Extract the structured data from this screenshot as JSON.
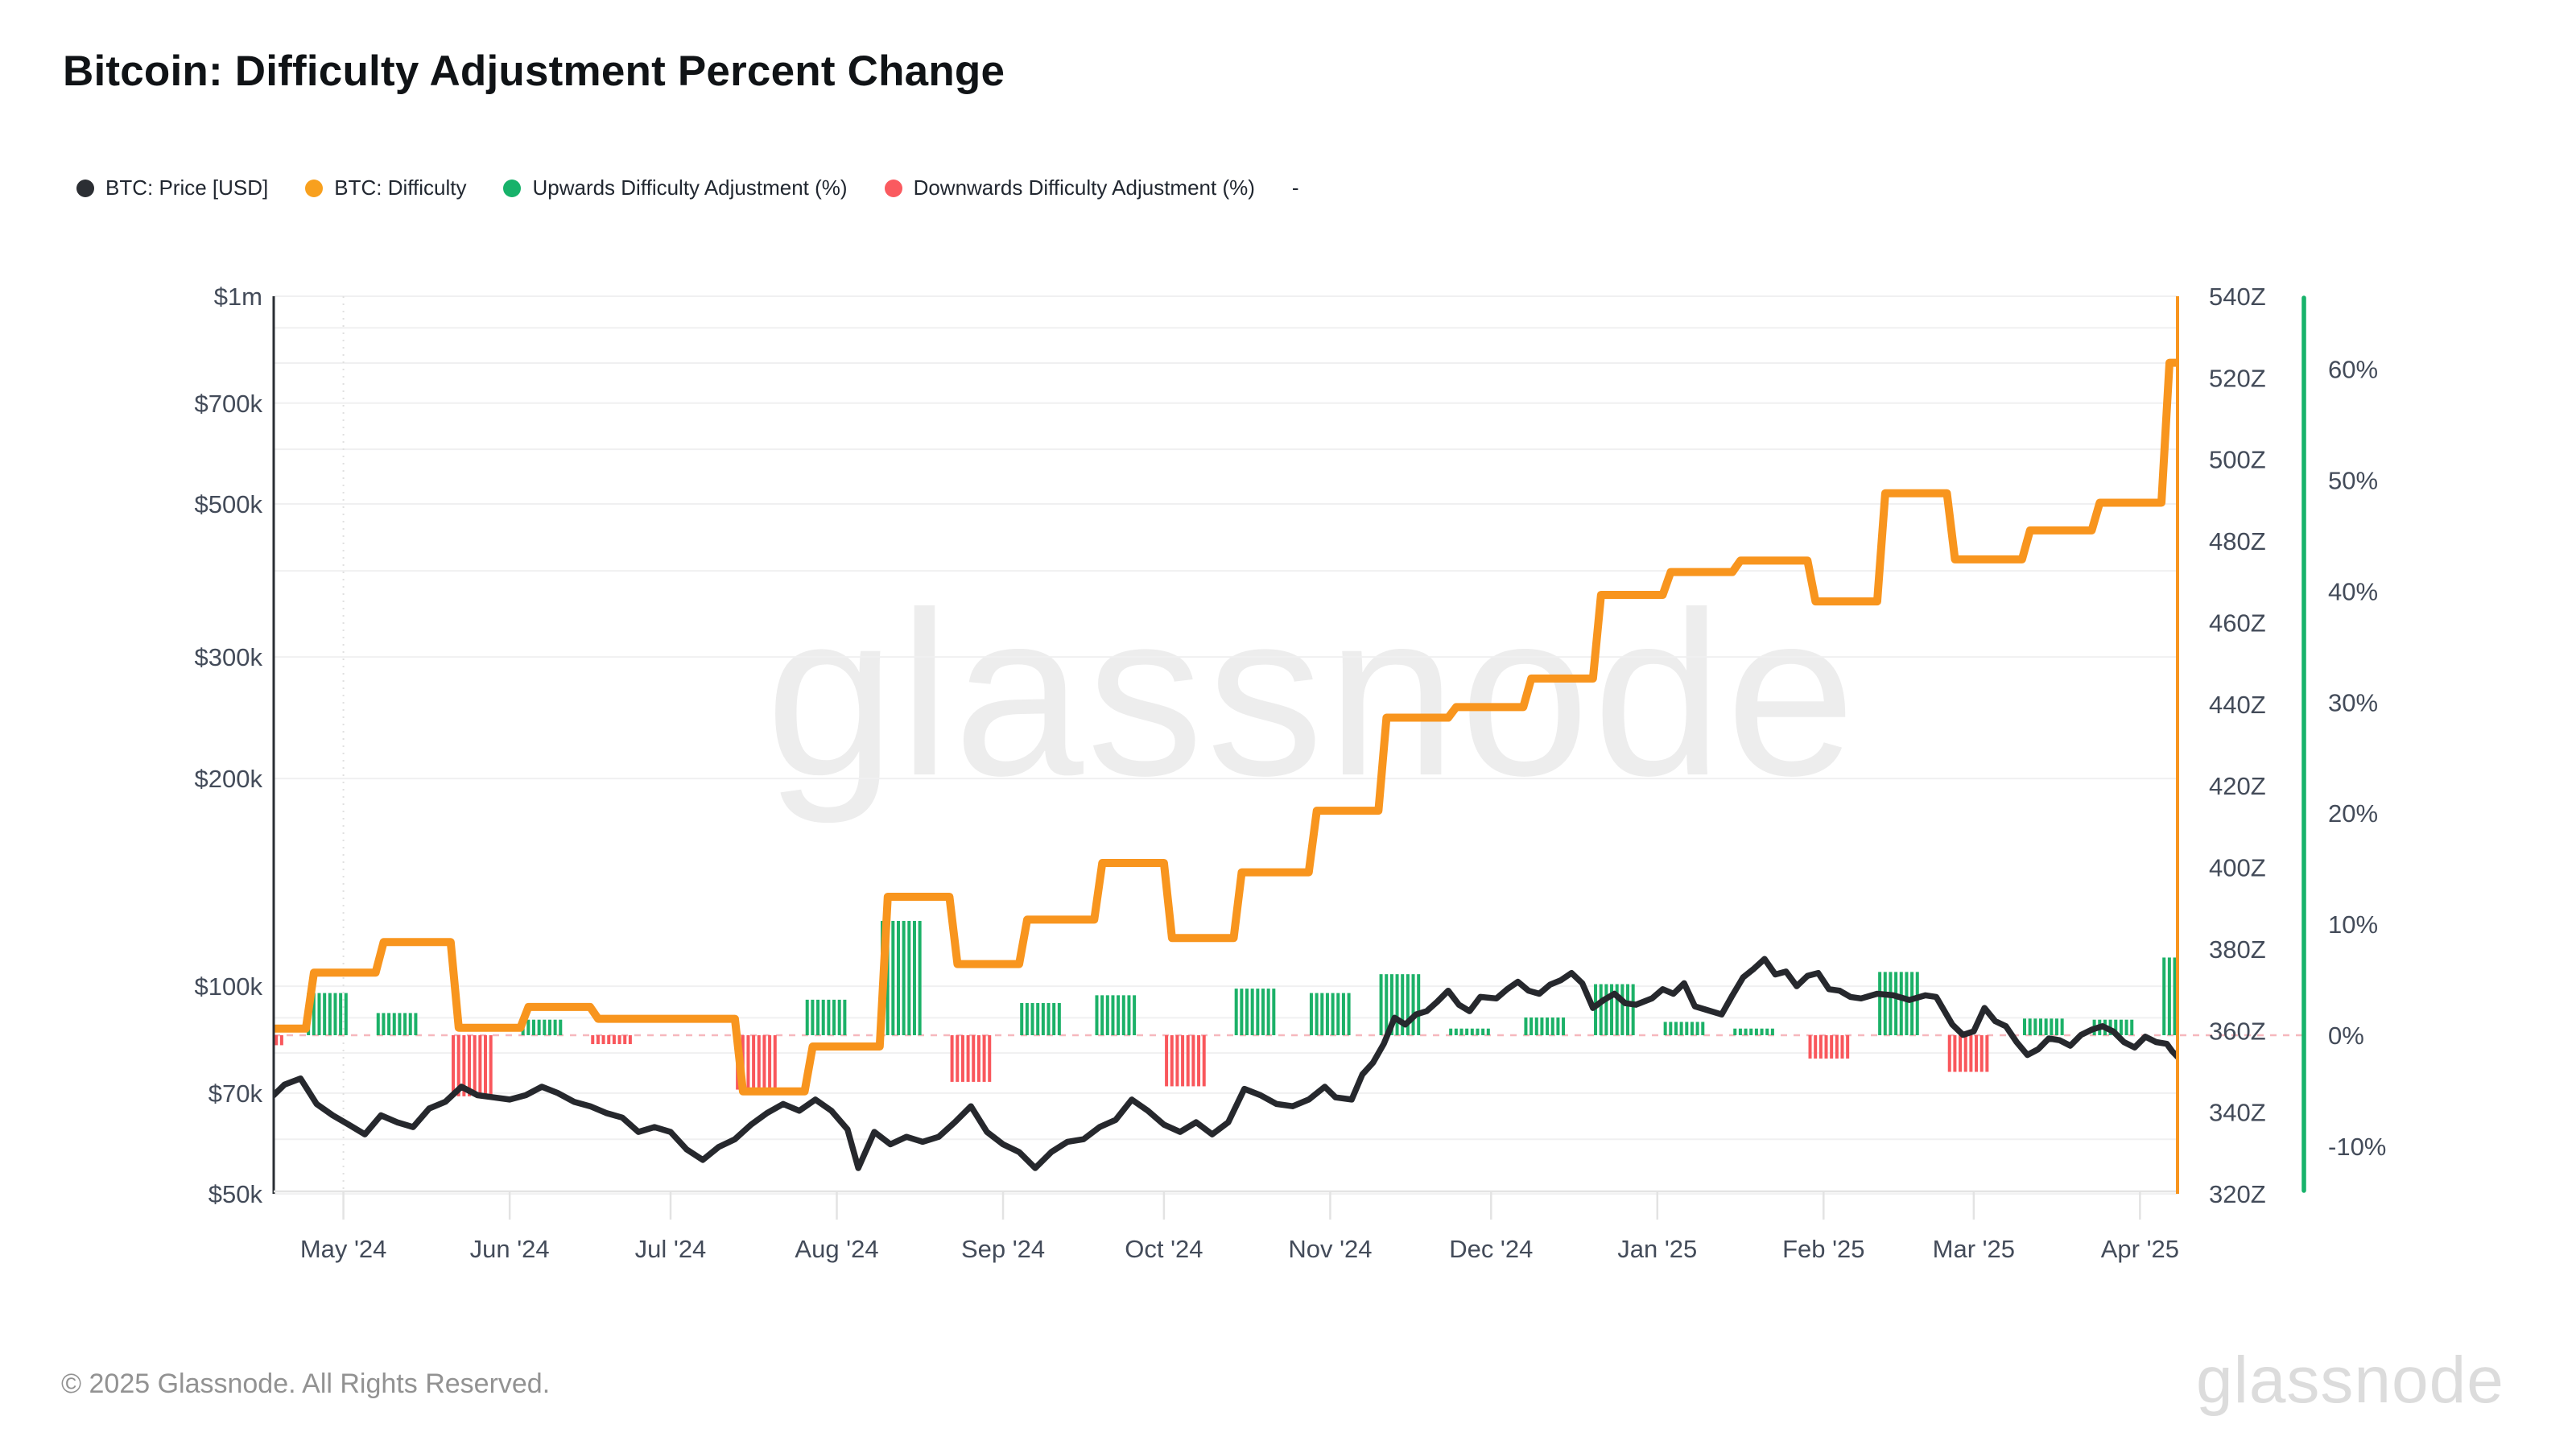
{
  "page": {
    "title": "Bitcoin: Difficulty Adjustment Percent Change",
    "footer": "© 2025 Glassnode. All Rights Reserved.",
    "watermark": "glassnode",
    "brand_logo": "glassnode"
  },
  "legend": {
    "items": [
      {
        "label": "BTC: Price [USD]",
        "color": "#2b2e33"
      },
      {
        "label": "BTC: Difficulty",
        "color": "#f8a01e"
      },
      {
        "label": "Upwards Difficulty Adjustment (%)",
        "color": "#17b26a"
      },
      {
        "label": "Downwards Difficulty Adjustment (%)",
        "color": "#fa5a5f"
      }
    ],
    "trailing_dash": "-"
  },
  "colors": {
    "price_line": "#26282d",
    "difficulty_line": "#f8951e",
    "up_bar": "#1cb168",
    "down_bar": "#f9575c",
    "zero_dash_line": "#f6b8bd",
    "gridline": "#f0f0f1",
    "axis_left_line": "#2a2e34",
    "axis_bottom_line": "#e3e3e3",
    "axis_right_difficulty_line": "#f8951e",
    "axis_right_percent_line": "#17b26a",
    "tick_label": "#434b59",
    "watermark": "#ededed"
  },
  "chart_data": {
    "type": "mixed",
    "subtype": [
      "line-log-price",
      "step-line-difficulty",
      "bar-percent-adjustments"
    ],
    "x_domain": [
      "2024-04-18",
      "2025-04-08"
    ],
    "x_ticks": [
      {
        "date": "2024-05-01",
        "label": "May '24"
      },
      {
        "date": "2024-06-01",
        "label": "Jun '24"
      },
      {
        "date": "2024-07-01",
        "label": "Jul '24"
      },
      {
        "date": "2024-08-01",
        "label": "Aug '24"
      },
      {
        "date": "2024-09-01",
        "label": "Sep '24"
      },
      {
        "date": "2024-10-01",
        "label": "Oct '24"
      },
      {
        "date": "2024-11-01",
        "label": "Nov '24"
      },
      {
        "date": "2024-12-01",
        "label": "Dec '24"
      },
      {
        "date": "2025-01-01",
        "label": "Jan '25"
      },
      {
        "date": "2025-02-01",
        "label": "Feb '25"
      },
      {
        "date": "2025-03-01",
        "label": "Mar '25"
      },
      {
        "date": "2025-04-01",
        "label": "Apr '25"
      }
    ],
    "y_axis_price_usd": {
      "scale": "log",
      "range_thousands": [
        50,
        1000
      ],
      "major_ticks": [
        {
          "value_k": 1000,
          "label": "$1m"
        },
        {
          "value_k": 700,
          "label": "$700k"
        },
        {
          "value_k": 500,
          "label": "$500k"
        },
        {
          "value_k": 300,
          "label": "$300k"
        },
        {
          "value_k": 200,
          "label": "$200k"
        },
        {
          "value_k": 100,
          "label": "$100k"
        },
        {
          "value_k": 70,
          "label": "$70k"
        },
        {
          "value_k": 50,
          "label": "$50k"
        }
      ],
      "minor_gridlines_k": [
        900,
        800,
        600,
        400,
        90,
        80,
        60
      ]
    },
    "y_axis_difficulty": {
      "range": [
        320,
        540
      ],
      "tick_step": 20,
      "tick_labels": [
        "540Z",
        "520Z",
        "500Z",
        "480Z",
        "460Z",
        "440Z",
        "420Z",
        "400Z",
        "380Z",
        "360Z",
        "340Z",
        "320Z"
      ]
    },
    "y_axis_percent": {
      "range": [
        -13,
        63
      ],
      "tick_labels": [
        "60%",
        "50%",
        "40%",
        "30%",
        "20%",
        "10%",
        "0%",
        "-10%"
      ],
      "tick_values": [
        60,
        50,
        40,
        30,
        20,
        10,
        0,
        -10
      ],
      "zero_line": 0
    },
    "series": {
      "btc_price_usd_thousands": [
        [
          "2024-04-18",
          69.5
        ],
        [
          "2024-04-20",
          72
        ],
        [
          "2024-04-23",
          73.5
        ],
        [
          "2024-04-26",
          67.5
        ],
        [
          "2024-04-29",
          65
        ],
        [
          "2024-05-02",
          63
        ],
        [
          "2024-05-05",
          61
        ],
        [
          "2024-05-08",
          65
        ],
        [
          "2024-05-11",
          63.5
        ],
        [
          "2024-05-14",
          62.5
        ],
        [
          "2024-05-17",
          66.5
        ],
        [
          "2024-05-20",
          68
        ],
        [
          "2024-05-23",
          71.5
        ],
        [
          "2024-05-26",
          69.5
        ],
        [
          "2024-05-29",
          69
        ],
        [
          "2024-06-01",
          68.5
        ],
        [
          "2024-06-04",
          69.5
        ],
        [
          "2024-06-07",
          71.5
        ],
        [
          "2024-06-10",
          70
        ],
        [
          "2024-06-13",
          68
        ],
        [
          "2024-06-16",
          67
        ],
        [
          "2024-06-19",
          65.5
        ],
        [
          "2024-06-22",
          64.5
        ],
        [
          "2024-06-25",
          61.5
        ],
        [
          "2024-06-28",
          62.5
        ],
        [
          "2024-07-01",
          61.5
        ],
        [
          "2024-07-04",
          58
        ],
        [
          "2024-07-07",
          56
        ],
        [
          "2024-07-10",
          58.5
        ],
        [
          "2024-07-13",
          60
        ],
        [
          "2024-07-16",
          63
        ],
        [
          "2024-07-19",
          65.5
        ],
        [
          "2024-07-22",
          67.5
        ],
        [
          "2024-07-25",
          66
        ],
        [
          "2024-07-28",
          68.5
        ],
        [
          "2024-07-31",
          66
        ],
        [
          "2024-08-03",
          62
        ],
        [
          "2024-08-05",
          54.5
        ],
        [
          "2024-08-08",
          61.5
        ],
        [
          "2024-08-11",
          59
        ],
        [
          "2024-08-14",
          60.5
        ],
        [
          "2024-08-17",
          59.5
        ],
        [
          "2024-08-20",
          60.5
        ],
        [
          "2024-08-23",
          63.5
        ],
        [
          "2024-08-26",
          67
        ],
        [
          "2024-08-29",
          61.5
        ],
        [
          "2024-09-01",
          59
        ],
        [
          "2024-09-04",
          57.5
        ],
        [
          "2024-09-07",
          54.5
        ],
        [
          "2024-09-10",
          57.5
        ],
        [
          "2024-09-13",
          59.5
        ],
        [
          "2024-09-16",
          60
        ],
        [
          "2024-09-19",
          62.5
        ],
        [
          "2024-09-22",
          64
        ],
        [
          "2024-09-25",
          68.5
        ],
        [
          "2024-09-28",
          66
        ],
        [
          "2024-10-01",
          63
        ],
        [
          "2024-10-04",
          61.5
        ],
        [
          "2024-10-07",
          63.5
        ],
        [
          "2024-10-10",
          61
        ],
        [
          "2024-10-13",
          63.5
        ],
        [
          "2024-10-16",
          71
        ],
        [
          "2024-10-19",
          69.5
        ],
        [
          "2024-10-22",
          67.5
        ],
        [
          "2024-10-25",
          67
        ],
        [
          "2024-10-28",
          68.5
        ],
        [
          "2024-10-31",
          71.5
        ],
        [
          "2024-11-02",
          69
        ],
        [
          "2024-11-05",
          68.5
        ],
        [
          "2024-11-07",
          74.5
        ],
        [
          "2024-11-09",
          77.5
        ],
        [
          "2024-11-11",
          82.5
        ],
        [
          "2024-11-13",
          90
        ],
        [
          "2024-11-15",
          88
        ],
        [
          "2024-11-17",
          91
        ],
        [
          "2024-11-19",
          92
        ],
        [
          "2024-11-21",
          95
        ],
        [
          "2024-11-23",
          98.5
        ],
        [
          "2024-11-25",
          94
        ],
        [
          "2024-11-27",
          92
        ],
        [
          "2024-11-29",
          96.5
        ],
        [
          "2024-12-02",
          96
        ],
        [
          "2024-12-04",
          99
        ],
        [
          "2024-12-06",
          101.5
        ],
        [
          "2024-12-08",
          98.5
        ],
        [
          "2024-12-10",
          97.5
        ],
        [
          "2024-12-12",
          100.5
        ],
        [
          "2024-12-14",
          102
        ],
        [
          "2024-12-16",
          104.5
        ],
        [
          "2024-12-18",
          101
        ],
        [
          "2024-12-20",
          93
        ],
        [
          "2024-12-22",
          95.5
        ],
        [
          "2024-12-24",
          97.5
        ],
        [
          "2024-12-26",
          94.5
        ],
        [
          "2024-12-28",
          94
        ],
        [
          "2024-12-31",
          96
        ],
        [
          "2025-01-02",
          99
        ],
        [
          "2025-01-04",
          97.5
        ],
        [
          "2025-01-06",
          101
        ],
        [
          "2025-01-08",
          93.5
        ],
        [
          "2025-01-10",
          92.5
        ],
        [
          "2025-01-13",
          91
        ],
        [
          "2025-01-15",
          97
        ],
        [
          "2025-01-17",
          103
        ],
        [
          "2025-01-19",
          106
        ],
        [
          "2025-01-21",
          109.5
        ],
        [
          "2025-01-23",
          104
        ],
        [
          "2025-01-25",
          105
        ],
        [
          "2025-01-27",
          100
        ],
        [
          "2025-01-29",
          103.5
        ],
        [
          "2025-01-31",
          104.5
        ],
        [
          "2025-02-02",
          99
        ],
        [
          "2025-02-04",
          98.5
        ],
        [
          "2025-02-06",
          96.5
        ],
        [
          "2025-02-08",
          96
        ],
        [
          "2025-02-11",
          97.5
        ],
        [
          "2025-02-14",
          97
        ],
        [
          "2025-02-17",
          95.5
        ],
        [
          "2025-02-20",
          97
        ],
        [
          "2025-02-22",
          96.5
        ],
        [
          "2025-02-25",
          88
        ],
        [
          "2025-02-27",
          85
        ],
        [
          "2025-03-01",
          86
        ],
        [
          "2025-03-03",
          93
        ],
        [
          "2025-03-05",
          89
        ],
        [
          "2025-03-07",
          87.5
        ],
        [
          "2025-03-09",
          83
        ],
        [
          "2025-03-11",
          79.5
        ],
        [
          "2025-03-13",
          81
        ],
        [
          "2025-03-15",
          84
        ],
        [
          "2025-03-17",
          83.5
        ],
        [
          "2025-03-19",
          82
        ],
        [
          "2025-03-21",
          85
        ],
        [
          "2025-03-23",
          86.5
        ],
        [
          "2025-03-25",
          87.5
        ],
        [
          "2025-03-27",
          86
        ],
        [
          "2025-03-29",
          83
        ],
        [
          "2025-03-31",
          81.5
        ],
        [
          "2025-04-02",
          84.5
        ],
        [
          "2025-04-04",
          83
        ],
        [
          "2025-04-06",
          82.5
        ],
        [
          "2025-04-07",
          80.5
        ],
        [
          "2025-04-08",
          79
        ]
      ],
      "difficulty_Z": {
        "initial_level": 360.5,
        "epochs": [
          [
            "2024-04-12",
            -0.9,
            360.5
          ],
          [
            "2024-04-24",
            3.8,
            374.2
          ],
          [
            "2024-05-07",
            2.0,
            381.7
          ],
          [
            "2024-05-21",
            -5.5,
            360.7
          ],
          [
            "2024-06-03",
            1.4,
            365.8
          ],
          [
            "2024-06-16",
            -0.8,
            362.9
          ],
          [
            "2024-06-30",
            0.0,
            362.9
          ],
          [
            "2024-07-13",
            -4.9,
            345.1
          ],
          [
            "2024-07-26",
            3.2,
            356.1
          ],
          [
            "2024-08-09",
            10.3,
            392.8
          ],
          [
            "2024-08-22",
            -4.2,
            376.3
          ],
          [
            "2024-09-04",
            2.9,
            387.2
          ],
          [
            "2024-09-18",
            3.6,
            401.1
          ],
          [
            "2024-10-01",
            -4.6,
            382.7
          ],
          [
            "2024-10-14",
            4.2,
            398.8
          ],
          [
            "2024-10-28",
            3.8,
            413.9
          ],
          [
            "2024-11-10",
            5.5,
            436.7
          ],
          [
            "2024-11-23",
            0.6,
            439.3
          ],
          [
            "2024-12-07",
            1.6,
            446.3
          ],
          [
            "2024-12-20",
            4.6,
            466.8
          ],
          [
            "2025-01-02",
            1.2,
            472.4
          ],
          [
            "2025-01-15",
            0.6,
            475.2
          ],
          [
            "2025-01-29",
            -2.1,
            465.2
          ],
          [
            "2025-02-11",
            5.7,
            491.7
          ],
          [
            "2025-02-24",
            -3.3,
            475.5
          ],
          [
            "2025-03-10",
            1.5,
            482.6
          ],
          [
            "2025-03-23",
            1.4,
            489.4
          ],
          [
            "2025-04-05",
            7.0,
            523.7
          ]
        ]
      }
    },
    "layout": {
      "legend_position": "top-left",
      "grid": "horizontal-only",
      "month_dotted_gridline": "2024-05-01"
    }
  }
}
